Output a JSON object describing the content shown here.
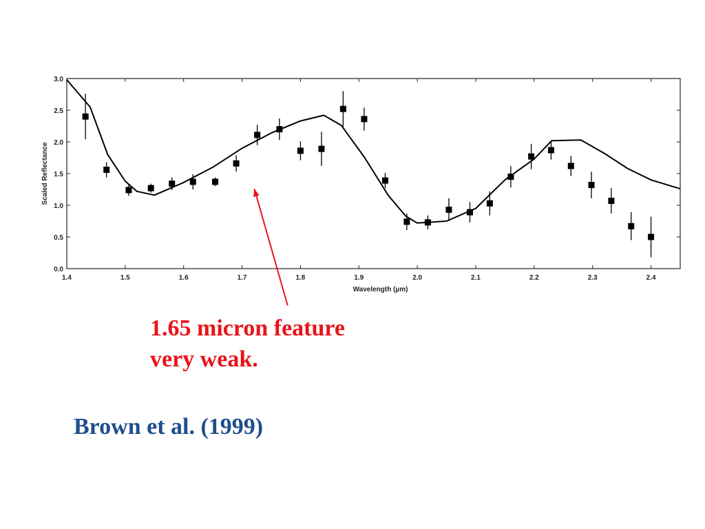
{
  "annotation": {
    "line1": "1.65 micron feature",
    "line2": "very weak.",
    "color": "#e8141a"
  },
  "citation": {
    "text": "Brown et al. (1999)",
    "color": "#1f4e8c"
  },
  "chart_data": {
    "type": "scatter",
    "title": "",
    "xlabel": "Wavelength (µm)",
    "ylabel": "Scaled Reflectance",
    "xlim": [
      1.4,
      2.45
    ],
    "ylim": [
      0.0,
      3.0
    ],
    "xticks": [
      1.4,
      1.5,
      1.6,
      1.7,
      1.8,
      1.9,
      2.0,
      2.1,
      2.2,
      2.3,
      2.4
    ],
    "yticks": [
      0.0,
      0.5,
      1.0,
      1.5,
      2.0,
      2.5,
      3.0
    ],
    "grid": false,
    "series": [
      {
        "kind": "points-with-error-bars",
        "marker": "square",
        "color": "#000000",
        "x": [
          1.432,
          1.468,
          1.506,
          1.544,
          1.58,
          1.616,
          1.654,
          1.69,
          1.726,
          1.764,
          1.8,
          1.836,
          1.873,
          1.909,
          1.945,
          1.982,
          2.018,
          2.054,
          2.09,
          2.124,
          2.16,
          2.195,
          2.229,
          2.263,
          2.298,
          2.332,
          2.366,
          2.4
        ],
        "y": [
          2.4,
          1.56,
          1.24,
          1.27,
          1.34,
          1.37,
          1.37,
          1.66,
          2.11,
          2.2,
          1.86,
          1.89,
          2.52,
          2.36,
          1.39,
          0.74,
          0.73,
          0.93,
          0.89,
          1.03,
          1.45,
          1.77,
          1.87,
          1.62,
          1.32,
          1.07,
          0.67,
          0.5
        ],
        "error": [
          0.36,
          0.12,
          0.09,
          0.07,
          0.1,
          0.12,
          0.07,
          0.13,
          0.16,
          0.17,
          0.15,
          0.27,
          0.28,
          0.18,
          0.12,
          0.13,
          0.11,
          0.18,
          0.16,
          0.19,
          0.17,
          0.2,
          0.15,
          0.16,
          0.21,
          0.2,
          0.22,
          0.32
        ]
      },
      {
        "kind": "model-line",
        "color": "#000000",
        "x": [
          1.4,
          1.44,
          1.47,
          1.5,
          1.52,
          1.55,
          1.6,
          1.65,
          1.7,
          1.75,
          1.8,
          1.84,
          1.87,
          1.91,
          1.95,
          1.98,
          2.0,
          2.05,
          2.1,
          2.15,
          2.2,
          2.23,
          2.28,
          2.32,
          2.36,
          2.4,
          2.45
        ],
        "y": [
          2.98,
          2.55,
          1.8,
          1.38,
          1.22,
          1.16,
          1.36,
          1.6,
          1.9,
          2.14,
          2.33,
          2.42,
          2.26,
          1.75,
          1.16,
          0.83,
          0.72,
          0.75,
          0.95,
          1.4,
          1.73,
          2.02,
          2.03,
          1.82,
          1.58,
          1.4,
          1.26
        ]
      }
    ],
    "arrow": {
      "from": [
        1.778,
        -0.58
      ],
      "to": [
        1.721,
        1.26
      ],
      "color": "#e8141a"
    }
  }
}
